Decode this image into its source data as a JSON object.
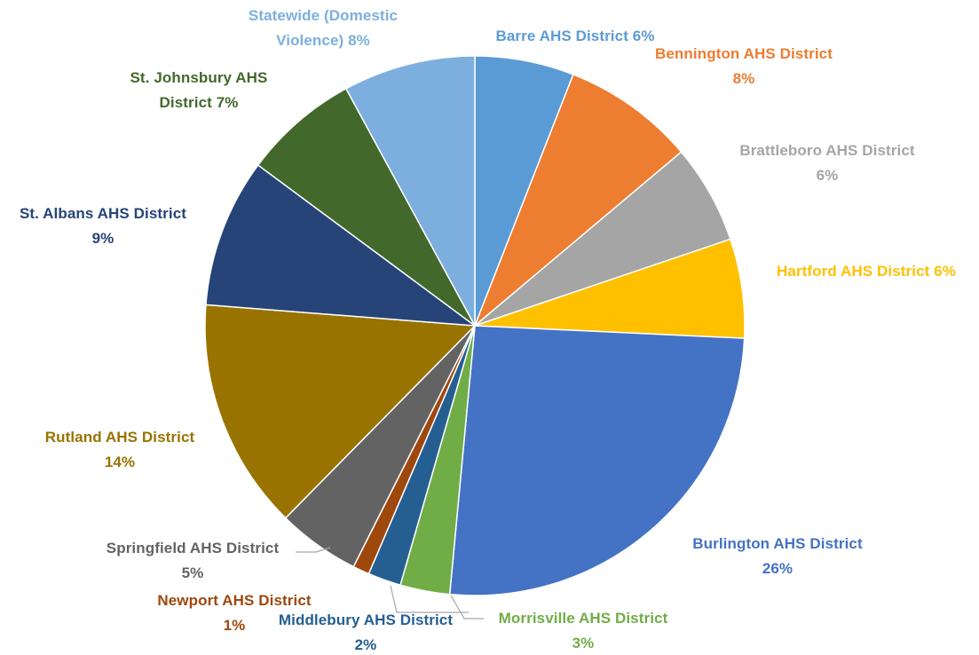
{
  "chart_data": {
    "type": "pie",
    "start_angle_deg": 0,
    "direction": "clockwise",
    "slices": [
      {
        "name": "Barre AHS District",
        "value": 6,
        "color": "#5B9BD5",
        "label_lines": [
          "Barre AHS District 6%"
        ]
      },
      {
        "name": "Bennington AHS District",
        "value": 8,
        "color": "#ED7D31",
        "label_lines": [
          "Bennington AHS District",
          "8%"
        ]
      },
      {
        "name": "Brattleboro AHS District",
        "value": 6,
        "color": "#A5A5A5",
        "label_lines": [
          "Brattleboro AHS District",
          "6%"
        ]
      },
      {
        "name": "Hartford AHS District",
        "value": 6,
        "color": "#FFC000",
        "label_lines": [
          "Hartford AHS District 6%"
        ]
      },
      {
        "name": "Burlington AHS District",
        "value": 26,
        "color": "#4472C4",
        "label_lines": [
          "Burlington AHS District",
          "26%"
        ]
      },
      {
        "name": "Morrisville AHS District",
        "value": 3,
        "color": "#70AD47",
        "label_lines": [
          "Morrisville AHS District",
          "3%"
        ]
      },
      {
        "name": "Middlebury AHS District",
        "value": 2,
        "color": "#255E91",
        "label_lines": [
          "Middlebury AHS District",
          "2%"
        ]
      },
      {
        "name": "Newport AHS District",
        "value": 1,
        "color": "#9E480E",
        "label_lines": [
          "Newport AHS District",
          "1%"
        ]
      },
      {
        "name": "Springfield AHS District",
        "value": 5,
        "color": "#636363",
        "label_lines": [
          "Springfield AHS District",
          "5%"
        ]
      },
      {
        "name": "Rutland AHS District",
        "value": 14,
        "color": "#997300",
        "label_lines": [
          "Rutland AHS District",
          "14%"
        ]
      },
      {
        "name": "St. Albans AHS District",
        "value": 9,
        "color": "#264478",
        "label_lines": [
          "St. Albans AHS District",
          "9%"
        ]
      },
      {
        "name": "St. Johnsbury AHS District",
        "value": 7,
        "color": "#43682B",
        "label_lines": [
          "St. Johnsbury AHS",
          "District 7%"
        ]
      },
      {
        "name": "Statewide (Domestic Violence)",
        "value": 8,
        "color": "#7CAFDD",
        "label_lines": [
          "Statewide (Domestic",
          "Violence) 8%"
        ]
      }
    ]
  }
}
